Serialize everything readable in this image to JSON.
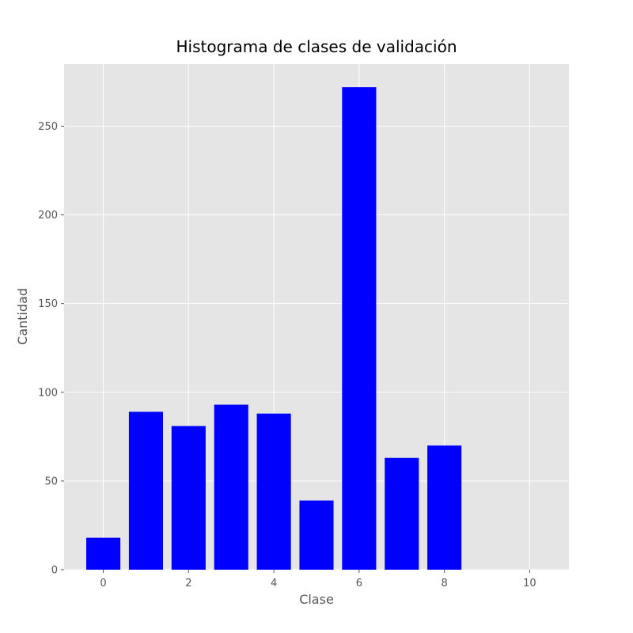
{
  "chart_data": {
    "type": "bar",
    "title": "Histograma de clases de validación",
    "xlabel": "Clase",
    "ylabel": "Cantidad",
    "x": [
      0,
      1,
      2,
      3,
      4,
      5,
      6,
      7,
      8
    ],
    "values": [
      18,
      89,
      81,
      93,
      88,
      39,
      272,
      63,
      70
    ],
    "xlim": [
      -0.92,
      10.92
    ],
    "ylim": [
      0,
      285
    ],
    "x_ticks": [
      0,
      2,
      4,
      6,
      8,
      10
    ],
    "y_ticks": [
      0,
      50,
      100,
      150,
      200,
      250
    ],
    "bar_color": "#0000ff",
    "background_color": "#e5e5e5",
    "grid": true,
    "style": "ggplot"
  }
}
